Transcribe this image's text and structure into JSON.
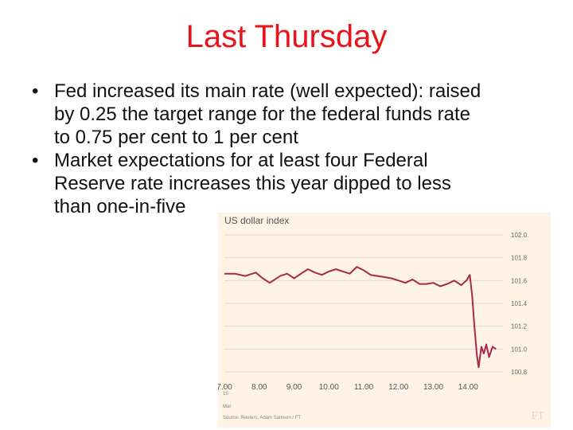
{
  "slide": {
    "title": "Last Thursday",
    "bullet_glyph": "•",
    "bullets": [
      {
        "lines": [
          "Fed increased its main rate (well expected): raised",
          "by 0.25 the target range for the federal funds rate",
          "to 0.75 per cent to 1 per cent"
        ]
      },
      {
        "lines": [
          "Market expectations for at least four Federal",
          "Reserve rate increases this year dipped to less",
          "than one-in-five"
        ]
      }
    ]
  },
  "chart": {
    "date_lines": [
      "15",
      "Mar"
    ],
    "source": "Source: Reuters, Adam Samson / FT",
    "logo": "FT"
  },
  "colors": {
    "title": "#e8141b",
    "line": "#a8284a",
    "card": "#fff3e6",
    "grid": "#e6d7c8"
  },
  "chart_data": {
    "type": "line",
    "title": "US dollar index",
    "x_ticks": [
      "7.00",
      "8.00",
      "9.00",
      "10.00",
      "11.00",
      "12.00",
      "13.00",
      "14.00"
    ],
    "y_ticks": [
      "102.0",
      "101.8",
      "101.6",
      "101.4",
      "101.2",
      "101.0",
      "100.8"
    ],
    "xlim": [
      7.0,
      15.0
    ],
    "ylim": [
      100.8,
      102.0
    ],
    "grid": true,
    "series": [
      {
        "x": [
          7.0,
          7.3,
          7.6,
          7.9,
          8.1,
          8.3,
          8.6,
          8.8,
          9.0,
          9.2,
          9.4,
          9.6,
          9.8,
          10.0,
          10.2,
          10.4,
          10.6,
          10.8,
          11.0,
          11.2,
          11.4,
          11.6,
          11.8,
          12.0,
          12.2,
          12.4,
          12.6,
          12.8,
          13.0,
          13.2,
          13.4,
          13.6,
          13.8,
          13.95,
          14.05,
          14.12,
          14.18,
          14.25,
          14.3,
          14.38,
          14.45,
          14.52,
          14.6,
          14.7,
          14.8
        ],
        "y": [
          101.66,
          101.66,
          101.64,
          101.67,
          101.62,
          101.58,
          101.64,
          101.66,
          101.62,
          101.66,
          101.7,
          101.67,
          101.65,
          101.68,
          101.7,
          101.68,
          101.66,
          101.72,
          101.69,
          101.65,
          101.64,
          101.63,
          101.62,
          101.6,
          101.58,
          101.61,
          101.57,
          101.57,
          101.58,
          101.55,
          101.57,
          101.6,
          101.56,
          101.6,
          101.65,
          101.45,
          101.2,
          100.95,
          100.84,
          101.02,
          100.96,
          101.04,
          100.93,
          101.02,
          101.0
        ]
      }
    ]
  }
}
